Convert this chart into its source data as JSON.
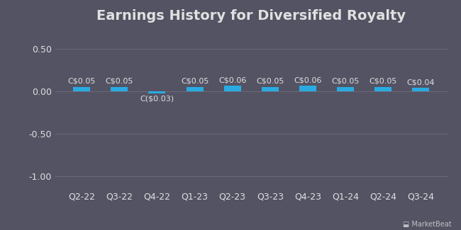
{
  "title": "Earnings History for Diversified Royalty",
  "categories": [
    "Q2-22",
    "Q3-22",
    "Q4-22",
    "Q1-23",
    "Q2-23",
    "Q3-23",
    "Q4-23",
    "Q1-24",
    "Q2-24",
    "Q3-24"
  ],
  "values": [
    0.05,
    0.05,
    -0.03,
    0.05,
    0.06,
    0.05,
    0.06,
    0.05,
    0.05,
    0.04
  ],
  "labels": [
    "C$0.05",
    "C$0.05",
    "C($0.03)",
    "C$0.05",
    "C$0.06",
    "C$0.05",
    "C$0.06",
    "C$0.05",
    "C$0.05",
    "C$0.04"
  ],
  "bar_color": "#29abe2",
  "background_color": "#535364",
  "text_color": "#e0e0e0",
  "grid_color": "#6a6a7a",
  "ylim": [
    -1.15,
    0.72
  ],
  "yticks": [
    0.5,
    0.0,
    -0.5,
    -1.0
  ],
  "title_fontsize": 14,
  "tick_fontsize": 9,
  "label_fontsize": 8,
  "bar_width": 0.45
}
